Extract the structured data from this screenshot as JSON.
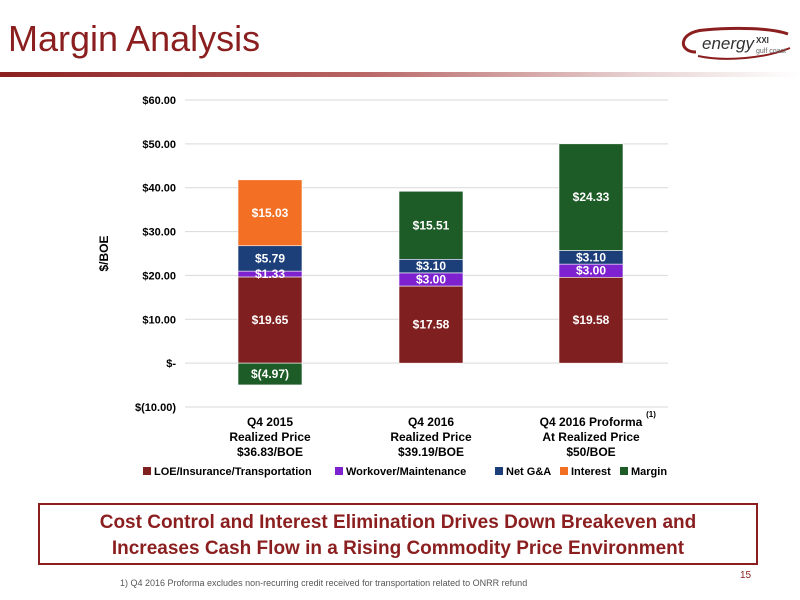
{
  "page": {
    "title": "Margin Analysis",
    "logo_text": "energy",
    "logo_xxi": "XXI",
    "logo_sub": "gulf coast",
    "callout_line1": "Cost Control and Interest Elimination Drives Down Breakeven and",
    "callout_line2": "Increases Cash Flow in a Rising Commodity Price Environment",
    "footnote": "1) Q4 2016 Proforma excludes non-recurring credit received for transportation related to ONRR refund",
    "page_number": "15"
  },
  "colors": {
    "LOE": "#7f1f1f",
    "Workover": "#7e22d0",
    "NetGA": "#1c3f7a",
    "Interest": "#f26f23",
    "Margin": "#1d5b27",
    "accent": "#8b1f1f"
  },
  "chart_data": {
    "type": "bar",
    "stacked": true,
    "ylabel": "$/BOE",
    "ylim": [
      -10,
      60
    ],
    "yticks": [
      {
        "value": 60,
        "label": "$60.00"
      },
      {
        "value": 50,
        "label": "$50.00"
      },
      {
        "value": 40,
        "label": "$40.00"
      },
      {
        "value": 30,
        "label": "$30.00"
      },
      {
        "value": 20,
        "label": "$20.00"
      },
      {
        "value": 10,
        "label": "$10.00"
      },
      {
        "value": 0,
        "label": "$-"
      },
      {
        "value": -10,
        "label": "$(10.00)"
      }
    ],
    "categories": [
      {
        "lines": [
          "Q4 2015",
          "Realized Price",
          "$36.83/BOE"
        ],
        "superscript": ""
      },
      {
        "lines": [
          "Q4 2016",
          "Realized Price",
          "$39.19/BOE"
        ],
        "superscript": ""
      },
      {
        "lines": [
          "Q4 2016 Proforma",
          "At Realized Price",
          "$50/BOE"
        ],
        "superscript": "(1)"
      }
    ],
    "series": [
      {
        "name": "LOE/Insurance/Transportation",
        "color_key": "LOE",
        "values": [
          19.65,
          17.58,
          19.58
        ],
        "labels": [
          "$19.65",
          "$17.58",
          "$19.58"
        ]
      },
      {
        "name": "Workover/Maintenance",
        "color_key": "Workover",
        "values": [
          1.33,
          3.0,
          3.0
        ],
        "labels": [
          "$1.33",
          "$3.00",
          "$3.00"
        ]
      },
      {
        "name": "Net G&A",
        "color_key": "NetGA",
        "values": [
          5.79,
          3.1,
          3.1
        ],
        "labels": [
          "$5.79",
          "$3.10",
          "$3.10"
        ]
      },
      {
        "name": "Interest",
        "color_key": "Interest",
        "values": [
          15.03,
          0,
          0
        ],
        "labels": [
          "$15.03",
          "",
          ""
        ]
      },
      {
        "name": "Margin",
        "color_key": "Margin",
        "values": [
          -4.97,
          15.51,
          24.33
        ],
        "labels": [
          "$(4.97)",
          "$15.51",
          "$24.33"
        ]
      }
    ],
    "legend_position": "bottom",
    "grid": true
  }
}
